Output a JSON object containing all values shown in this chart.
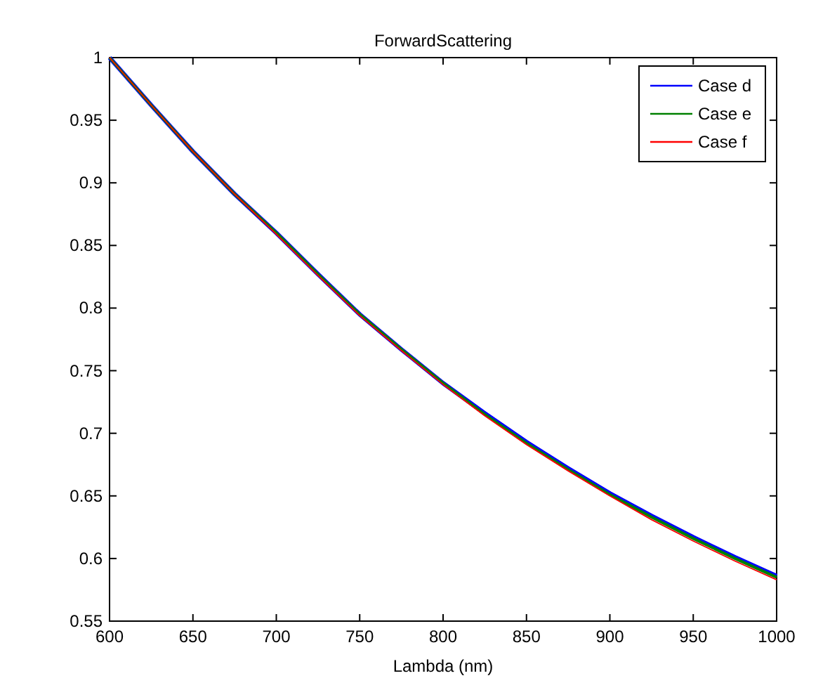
{
  "chart_data": {
    "type": "line",
    "title": "ForwardScattering",
    "xlabel": "Lambda (nm)",
    "x": [
      600,
      625,
      650,
      675,
      700,
      725,
      750,
      775,
      800,
      825,
      850,
      875,
      900,
      925,
      950,
      975,
      1000
    ],
    "series": [
      {
        "name": "Case d",
        "color": "#0000ff",
        "values": [
          1,
          0.962,
          0.925,
          0.891,
          0.86,
          0.827,
          0.795,
          0.767,
          0.74,
          0.716,
          0.693,
          0.672,
          0.652,
          0.634,
          0.617,
          0.601,
          0.586
        ]
      },
      {
        "name": "Case e",
        "color": "#008000",
        "values": [
          1,
          0.962,
          0.925,
          0.891,
          0.86,
          0.827,
          0.795,
          0.767,
          0.74,
          0.715,
          0.692,
          0.671,
          0.651,
          0.633,
          0.616,
          0.6,
          0.585
        ]
      },
      {
        "name": "Case f",
        "color": "#ff0000",
        "values": [
          1,
          0.962,
          0.925,
          0.891,
          0.859,
          0.826,
          0.794,
          0.766,
          0.739,
          0.714,
          0.691,
          0.67,
          0.65,
          0.631,
          0.614,
          0.598,
          0.583
        ]
      }
    ],
    "xlim": [
      600,
      1000
    ],
    "xticks": [
      600,
      650,
      700,
      750,
      800,
      850,
      900,
      950,
      1000
    ],
    "ylim": [
      0.55,
      1
    ],
    "yticks": [
      0.55,
      0.6,
      0.65,
      0.7,
      0.75,
      0.8,
      0.85,
      0.9,
      0.95,
      1
    ],
    "grid": false,
    "legend": "top right"
  }
}
